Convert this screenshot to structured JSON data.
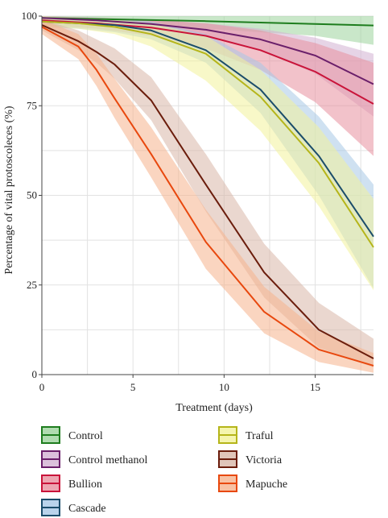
{
  "chart_data": {
    "type": "line",
    "title": "",
    "xlabel": "Treatment (days)",
    "ylabel": "Percentage of vital protoscoleces (%)",
    "xlim": [
      0,
      18.2
    ],
    "ylim": [
      0,
      100
    ],
    "xticks": [
      0,
      5,
      10,
      15
    ],
    "yticks": [
      0,
      25,
      50,
      75,
      100
    ],
    "grid": true,
    "legend_position": "bottom",
    "series": [
      {
        "name": "Control",
        "color": "#1e7d1e",
        "band_color": "#9cd39c",
        "x": [
          0,
          3,
          6,
          9,
          12,
          15,
          18.2
        ],
        "y": [
          99.5,
          99.2,
          98.9,
          98.6,
          98.2,
          97.8,
          97.4
        ],
        "lower": [
          99,
          98.5,
          97.5,
          96.5,
          95.5,
          94.5,
          92
        ],
        "upper": [
          100,
          100,
          100,
          100,
          100,
          100,
          100
        ]
      },
      {
        "name": "Control methanol",
        "color": "#6a1f6a",
        "band_color": "#d2b0d2",
        "x": [
          0,
          3,
          6,
          9,
          12,
          15,
          18.2
        ],
        "y": [
          99.5,
          98.8,
          97.8,
          96.2,
          93.5,
          89,
          81
        ],
        "lower": [
          98.8,
          98,
          96.5,
          94.5,
          90.5,
          84,
          72
        ],
        "upper": [
          100,
          99.6,
          99,
          98,
          96.5,
          94,
          89.5
        ]
      },
      {
        "name": "Bullion",
        "color": "#c9143a",
        "band_color": "#e8909e",
        "x": [
          0,
          3,
          6,
          9,
          12,
          15,
          18.2
        ],
        "y": [
          98.8,
          98,
          96.8,
          94.5,
          90.5,
          84.5,
          75.5
        ],
        "lower": [
          97.5,
          96.5,
          94.5,
          91,
          85,
          76,
          61
        ],
        "upper": [
          100,
          99.5,
          99,
          98,
          96,
          92.5,
          87
        ]
      },
      {
        "name": "Cascade",
        "color": "#1b4d6b",
        "band_color": "#a8c8e6",
        "x": [
          0,
          2,
          4,
          6,
          9,
          12,
          15.2,
          18.2
        ],
        "y": [
          98.5,
          98,
          97.5,
          96,
          90.5,
          79.5,
          61,
          38.5
        ],
        "lower": [
          97,
          96.5,
          95.5,
          93.5,
          87,
          73,
          50,
          24
        ],
        "upper": [
          100,
          99.5,
          99.2,
          98.5,
          95,
          87,
          72,
          53
        ]
      },
      {
        "name": "Traful",
        "color": "#b5b51a",
        "band_color": "#f3f39a",
        "x": [
          0,
          2,
          4,
          6,
          9,
          12,
          15.2,
          18.2
        ],
        "y": [
          98.5,
          98,
          97,
          95,
          89.5,
          77.5,
          59,
          35.5
        ],
        "lower": [
          97,
          96.5,
          95,
          91.5,
          82,
          68,
          47,
          23.5
        ],
        "upper": [
          100,
          99.5,
          99,
          98,
          94.5,
          85,
          69,
          49
        ]
      },
      {
        "name": "Victoria",
        "color": "#6b1d0c",
        "band_color": "#d8b6a8",
        "x": [
          0,
          2,
          3,
          4,
          6,
          9,
          12.2,
          15.2,
          18.2
        ],
        "y": [
          97.5,
          93,
          90,
          86.5,
          76.5,
          53,
          28.5,
          12.5,
          4.5
        ],
        "lower": [
          96,
          90.5,
          87,
          82.5,
          71,
          45.5,
          21.5,
          7.5,
          2
        ],
        "upper": [
          99,
          96,
          93.5,
          91,
          83,
          61.5,
          36.5,
          20,
          10
        ]
      },
      {
        "name": "Mapuche",
        "color": "#e8480e",
        "band_color": "#f6b28c",
        "x": [
          0,
          2,
          3,
          4,
          6,
          9,
          12.2,
          15.2,
          18.2
        ],
        "y": [
          97,
          91.5,
          85,
          77,
          61.5,
          37,
          17.5,
          7,
          2.5
        ],
        "lower": [
          95,
          88,
          80.5,
          71.5,
          55,
          29.5,
          11.5,
          3.5,
          0.5
        ],
        "upper": [
          99,
          95,
          89.5,
          82.5,
          69,
          46,
          24.5,
          12,
          6
        ]
      }
    ]
  }
}
